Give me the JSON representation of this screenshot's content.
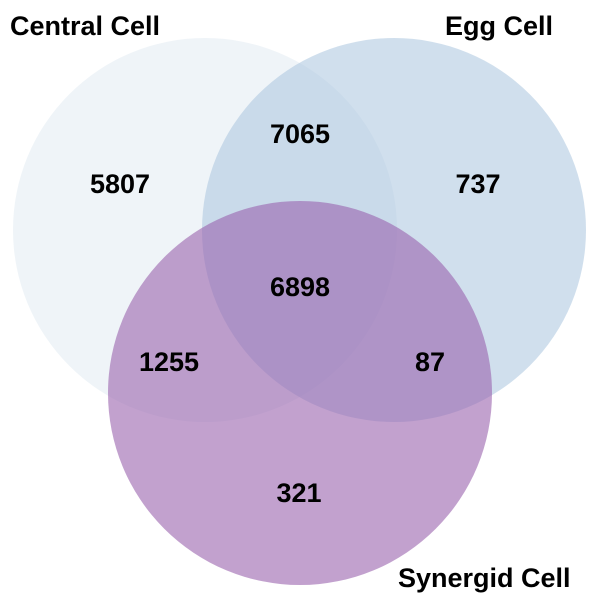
{
  "venn": {
    "sets": [
      {
        "label": "Central Cell",
        "color": "#d6e3ee"
      },
      {
        "label": "Egg Cell",
        "color": "#a9c4df"
      },
      {
        "label": "Synergid Cell",
        "color": "#9a63ae"
      }
    ],
    "regions": {
      "central_only": "5807",
      "egg_only": "737",
      "synergid_only": "321",
      "central_egg": "7065",
      "central_synergid": "1255",
      "egg_synergid": "87",
      "all_three": "6898"
    }
  }
}
